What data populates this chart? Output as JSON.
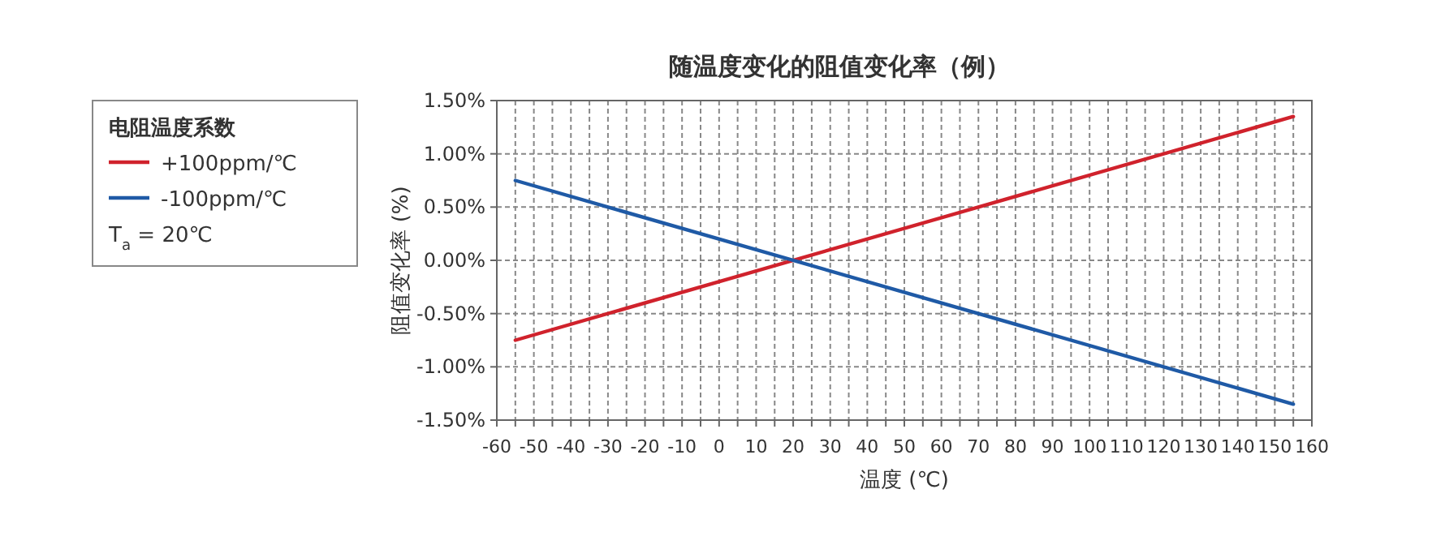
{
  "chart_data": {
    "type": "line",
    "title": "随温度变化的阻值变化率（例）",
    "xlabel": "温度 (℃)",
    "ylabel": "阻值变化率 (%)",
    "legend_title": "电阻温度系数",
    "annotations": [
      "T$_{a}$ = 20℃"
    ],
    "series": [
      {
        "name": "+100ppm/℃",
        "color": "#d0222c",
        "values": [
          -0.75,
          1.35
        ]
      },
      {
        "name": "-100ppm/℃",
        "color": "#1f5aa6",
        "values": [
          0.75,
          -1.35
        ]
      }
    ],
    "x": [
      -55,
      155
    ],
    "xlim": [
      -60,
      160
    ],
    "xticks": [
      -60,
      {
        "value": -55,
        "label": null
      },
      -50,
      {
        "value": -45,
        "label": null
      },
      -40,
      {
        "value": -35,
        "label": null
      },
      -30,
      {
        "value": -25,
        "label": null
      },
      -20,
      {
        "value": -15,
        "label": null
      },
      -10,
      {
        "value": -5,
        "label": null
      },
      0,
      {
        "value": 5,
        "label": null
      },
      10,
      {
        "value": 15,
        "label": null
      },
      20,
      {
        "value": 25,
        "label": null
      },
      30,
      {
        "value": 35,
        "label": null
      },
      40,
      {
        "value": 45,
        "label": null
      },
      50,
      {
        "value": 55,
        "label": null
      },
      60,
      {
        "value": 65,
        "label": null
      },
      70,
      {
        "value": 75,
        "label": null
      },
      80,
      {
        "value": 85,
        "label": null
      },
      90,
      {
        "value": 95,
        "label": null
      },
      100,
      {
        "value": 105,
        "label": null
      },
      110,
      {
        "value": 115,
        "label": null
      },
      120,
      {
        "value": 125,
        "label": null
      },
      130,
      {
        "value": 135,
        "label": null
      },
      140,
      {
        "value": 145,
        "label": null
      },
      150,
      {
        "value": 155,
        "label": null
      },
      160
    ],
    "ylim": [
      -1.5,
      1.5
    ],
    "yticks": [
      {
        "value": -1.5,
        "label": "-1.50%"
      },
      {
        "value": -1.0,
        "label": "-1.00%"
      },
      {
        "value": -0.5,
        "label": "-0.50%"
      },
      {
        "value": 0,
        "label": "0.00%"
      },
      {
        "value": 0.5,
        "label": "0.50%"
      },
      {
        "value": 1.0,
        "label": "1.00%"
      },
      {
        "value": 1.5,
        "label": "1.50%"
      }
    ],
    "grid": true,
    "legend": "left",
    "line_style": "solid",
    "marker": "none"
  }
}
